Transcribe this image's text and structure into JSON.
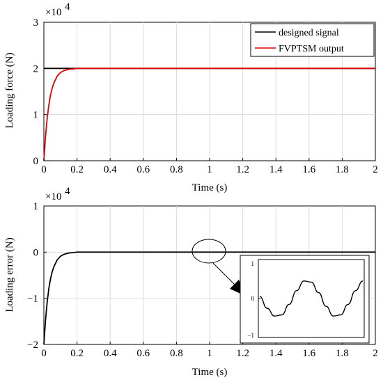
{
  "chart_data": [
    {
      "type": "line",
      "xlabel": "Time (s)",
      "ylabel": "Loading force (N)",
      "exponent_label": "×10",
      "exponent_power": "4",
      "xlim": [
        0,
        2
      ],
      "ylim": [
        0,
        3
      ],
      "x_ticks": [
        "0",
        "0.2",
        "0.4",
        "0.6",
        "0.8",
        "1",
        "1.2",
        "1.4",
        "1.6",
        "1.8",
        "2"
      ],
      "y_ticks": [
        "0",
        "1",
        "2",
        "3"
      ],
      "grid": true,
      "legend_position": "top-right",
      "series": [
        {
          "name": "designed signal",
          "color": "#000000",
          "x": [
            0,
            2
          ],
          "y": [
            2,
            2
          ]
        },
        {
          "name": "FVPTSM output",
          "color": "#e00000",
          "x": [
            0,
            0.01,
            0.02,
            0.03,
            0.04,
            0.05,
            0.06,
            0.08,
            0.1,
            0.12,
            0.15,
            0.18,
            0.2,
            0.25,
            0.3,
            0.5,
            1,
            1.5,
            2
          ],
          "y": [
            0,
            0.53,
            0.92,
            1.21,
            1.42,
            1.57,
            1.68,
            1.83,
            1.91,
            1.95,
            1.98,
            1.99,
            2,
            2,
            2,
            2,
            2,
            2,
            2
          ]
        }
      ]
    },
    {
      "type": "line",
      "xlabel": "Time (s)",
      "ylabel": "Loading error (N)",
      "exponent_label": "×10",
      "exponent_power": "4",
      "xlim": [
        0,
        2
      ],
      "ylim": [
        -2,
        1
      ],
      "x_ticks": [
        "0",
        "0.2",
        "0.4",
        "0.6",
        "0.8",
        "1",
        "1.2",
        "1.4",
        "1.6",
        "1.8",
        "2"
      ],
      "y_ticks": [
        "-2",
        "-1",
        "0",
        "1"
      ],
      "y_tick_values": [
        -2,
        -1,
        0,
        1
      ],
      "grid": true,
      "series": [
        {
          "color": "#000000",
          "x": [
            0,
            0.01,
            0.02,
            0.03,
            0.04,
            0.05,
            0.06,
            0.08,
            0.1,
            0.12,
            0.15,
            0.18,
            0.2,
            0.25,
            0.3,
            0.5,
            1,
            1.5,
            2
          ],
          "y": [
            -2,
            -1.47,
            -1.08,
            -0.79,
            -0.58,
            -0.43,
            -0.32,
            -0.17,
            -0.09,
            -0.05,
            -0.02,
            -0.01,
            0,
            0,
            0,
            0,
            0,
            0,
            0
          ]
        }
      ],
      "zoom_region": {
        "x": 1,
        "y": 0
      },
      "inset": {
        "y_ticks": [
          "1",
          "0",
          "-1"
        ],
        "y_tick_values": [
          1,
          0,
          -1
        ],
        "ylim": [
          -1,
          1
        ],
        "description_of_signal": "oscillating error",
        "series": {
          "color": "#000000",
          "y": [
            0.05,
            -0.25,
            -0.45,
            -0.42,
            -0.15,
            0.2,
            0.45,
            0.42,
            0.15,
            -0.2,
            -0.45,
            -0.42,
            -0.15,
            0.2,
            0.45
          ]
        }
      }
    }
  ]
}
